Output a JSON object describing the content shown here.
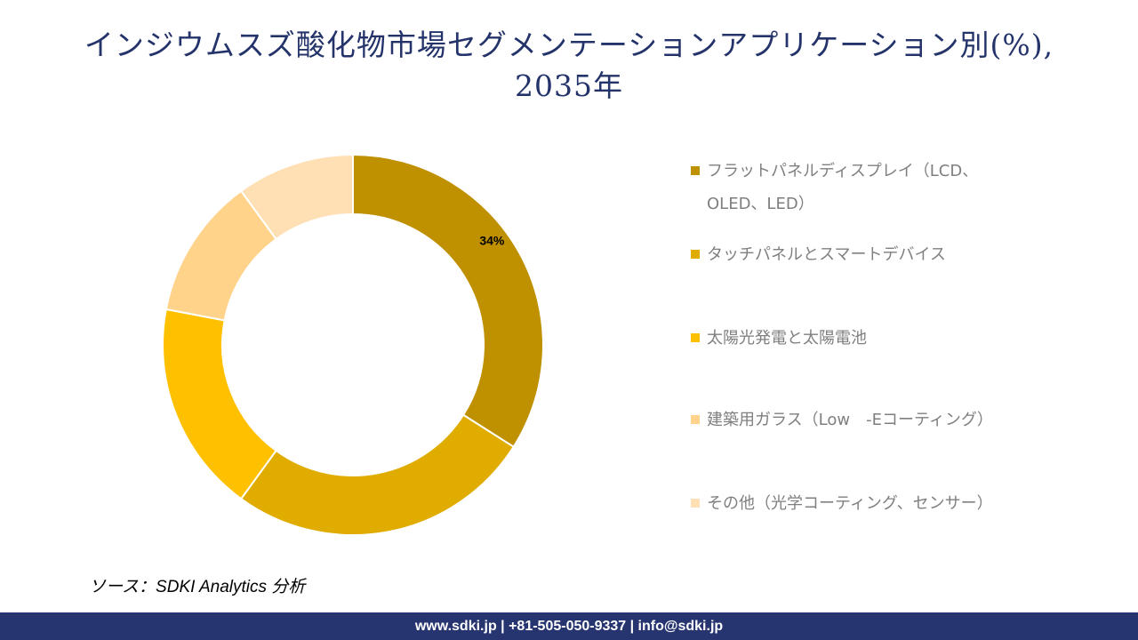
{
  "title_line1": "インジウムスズ酸化物市場セグメンテーションアプリケーション別(%),",
  "title_line2": "2035年",
  "chart_data": {
    "type": "pie",
    "donut": true,
    "title": "インジウムスズ酸化物市場セグメンテーションアプリケーション別(%), 2035年",
    "categories": [
      "フラットパネルディスプレイ（LCD、OLED、LED）",
      "タッチパネルとスマートデバイス",
      "太陽光発電と太陽電池",
      "建築用ガラス（Low　-Eコーティング）",
      "その他（光学コーティング、センサー）"
    ],
    "values": [
      34,
      26,
      18,
      12,
      10
    ],
    "colors": [
      "#BF9000",
      "#E0AC00",
      "#FFC000",
      "#FFD38A",
      "#FFE0B5"
    ],
    "data_labels": [
      "34%",
      "",
      "",
      "",
      ""
    ],
    "legend_position": "right"
  },
  "source": "ソース：SDKI Analytics 分析",
  "footer": "www.sdki.jp | +81-505-050-9337 | info@sdki.jp"
}
